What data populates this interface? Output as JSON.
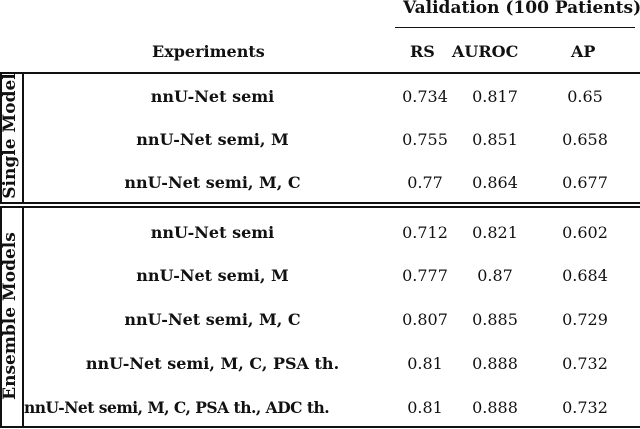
{
  "header": {
    "group_label": "Validation (100 Patients)",
    "experiments_label": "Experiments",
    "col_rs": "RS",
    "col_auroc": "AUROC",
    "col_ap": "AP"
  },
  "sections": [
    {
      "label": "Single Model",
      "rows": [
        {
          "experiment": "nnU-Net semi",
          "rs": "0.734",
          "auroc": "0.817",
          "ap": "0.65"
        },
        {
          "experiment": "nnU-Net semi, M",
          "rs": "0.755",
          "auroc": "0.851",
          "ap": "0.658"
        },
        {
          "experiment": "nnU-Net semi, M, C",
          "rs": "0.77",
          "auroc": "0.864",
          "ap": "0.677"
        }
      ]
    },
    {
      "label": "Ensemble Models",
      "rows": [
        {
          "experiment": "nnU-Net semi",
          "rs": "0.712",
          "auroc": "0.821",
          "ap": "0.602"
        },
        {
          "experiment": "nnU-Net semi, M",
          "rs": "0.777",
          "auroc": "0.87",
          "ap": "0.684"
        },
        {
          "experiment": "nnU-Net semi, M, C",
          "rs": "0.807",
          "auroc": "0.885",
          "ap": "0.729"
        },
        {
          "experiment": "nnU-Net semi, M, C, PSA th.",
          "rs": "0.81",
          "auroc": "0.888",
          "ap": "0.732"
        },
        {
          "experiment": "nnU-Net semi, M, C, PSA th., ADC th.",
          "rs": "0.81",
          "auroc": "0.888",
          "ap": "0.732"
        }
      ]
    }
  ]
}
